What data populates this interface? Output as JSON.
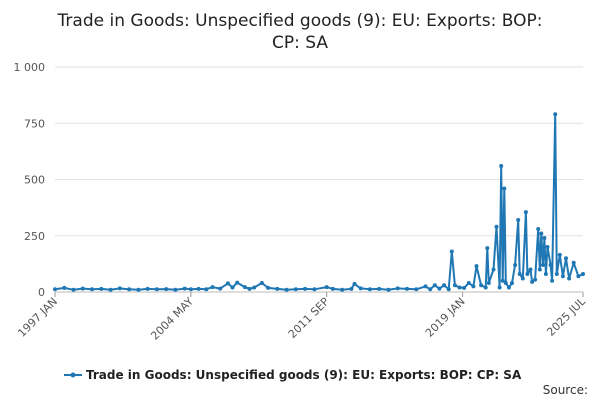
{
  "chart_data": {
    "type": "line",
    "title": "Trade in Goods: Unspecified goods (9): EU: Exports: BOP: CP: SA",
    "title_lines": [
      "Trade in Goods: Unspecified goods (9): EU: Exports: BOP:",
      "CP: SA"
    ],
    "xlabel": "",
    "ylabel": "",
    "x_range": [
      "1997 JAN",
      "2025 JUL"
    ],
    "ylim": [
      0,
      1000
    ],
    "y_ticks": [
      {
        "value": 0,
        "label": "0"
      },
      {
        "value": 250,
        "label": "250"
      },
      {
        "value": 500,
        "label": "500"
      },
      {
        "value": 750,
        "label": "750"
      },
      {
        "value": 1000,
        "label": "1 000"
      }
    ],
    "x_ticks": [
      "1997 JAN",
      "2004 MAY",
      "2011 SEP",
      "2019 JAN",
      "2025 JUL"
    ],
    "grid": "horizontal",
    "legend_position": "bottom",
    "source_label": "Source:",
    "series": [
      {
        "name": "Trade in Goods: Unspecified goods (9): EU: Exports: BOP: CP: SA",
        "color": "#1f77b4",
        "points": [
          [
            "1997 JAN",
            12
          ],
          [
            "1997 JUL",
            18
          ],
          [
            "1998 JAN",
            10
          ],
          [
            "1998 JUL",
            15
          ],
          [
            "1999 JAN",
            12
          ],
          [
            "1999 JUL",
            14
          ],
          [
            "2000 JAN",
            10
          ],
          [
            "2000 JUL",
            16
          ],
          [
            "2001 JAN",
            12
          ],
          [
            "2001 JUL",
            10
          ],
          [
            "2002 JAN",
            14
          ],
          [
            "2002 JUL",
            12
          ],
          [
            "2003 JAN",
            13
          ],
          [
            "2003 JUL",
            10
          ],
          [
            "2004 JAN",
            15
          ],
          [
            "2004 MAY",
            12
          ],
          [
            "2004 OCT",
            14
          ],
          [
            "2005 MAR",
            12
          ],
          [
            "2005 JUL",
            22
          ],
          [
            "2005 DEC",
            15
          ],
          [
            "2006 MAY",
            38
          ],
          [
            "2006 AUG",
            20
          ],
          [
            "2006 NOV",
            42
          ],
          [
            "2007 APR",
            22
          ],
          [
            "2007 JUL",
            14
          ],
          [
            "2007 OCT",
            20
          ],
          [
            "2008 MAR",
            40
          ],
          [
            "2008 JUL",
            18
          ],
          [
            "2009 JAN",
            14
          ],
          [
            "2009 JUL",
            10
          ],
          [
            "2010 JAN",
            12
          ],
          [
            "2010 JUL",
            14
          ],
          [
            "2011 JAN",
            12
          ],
          [
            "2011 SEP",
            22
          ],
          [
            "2012 JAN",
            14
          ],
          [
            "2012 JUL",
            10
          ],
          [
            "2013 JAN",
            14
          ],
          [
            "2013 MAR",
            36
          ],
          [
            "2013 JUL",
            16
          ],
          [
            "2014 JAN",
            12
          ],
          [
            "2014 JUL",
            14
          ],
          [
            "2015 JAN",
            10
          ],
          [
            "2015 JUL",
            16
          ],
          [
            "2016 JAN",
            14
          ],
          [
            "2016 JUL",
            12
          ],
          [
            "2017 JAN",
            25
          ],
          [
            "2017 APR",
            12
          ],
          [
            "2017 JUL",
            30
          ],
          [
            "2017 OCT",
            15
          ],
          [
            "2018 JAN",
            30
          ],
          [
            "2018 APR",
            12
          ],
          [
            "2018 JUN",
            180
          ],
          [
            "2018 AUG",
            30
          ],
          [
            "2018 NOV",
            20
          ],
          [
            "2019 FEB",
            18
          ],
          [
            "2019 MAY",
            40
          ],
          [
            "2019 AUG",
            25
          ],
          [
            "2019 OCT",
            115
          ],
          [
            "2020 JAN",
            30
          ],
          [
            "2020 APR",
            20
          ],
          [
            "2020 MAY",
            195
          ],
          [
            "2020 JUN",
            40
          ],
          [
            "2020 SEP",
            100
          ],
          [
            "2020 NOV",
            290
          ],
          [
            "2021 JAN",
            20
          ],
          [
            "2021 FEB",
            560
          ],
          [
            "2021 MAR",
            50
          ],
          [
            "2021 APR",
            460
          ],
          [
            "2021 MAY",
            40
          ],
          [
            "2021 JUL",
            20
          ],
          [
            "2021 SEP",
            40
          ],
          [
            "2021 NOV",
            120
          ],
          [
            "2022 JAN",
            320
          ],
          [
            "2022 FEB",
            80
          ],
          [
            "2022 APR",
            60
          ],
          [
            "2022 JUN",
            355
          ],
          [
            "2022 JUL",
            80
          ],
          [
            "2022 SEP",
            100
          ],
          [
            "2022 OCT",
            45
          ],
          [
            "2022 DEC",
            55
          ],
          [
            "2023 FEB",
            280
          ],
          [
            "2023 MAR",
            100
          ],
          [
            "2023 APR",
            260
          ],
          [
            "2023 MAY",
            120
          ],
          [
            "2023 JUN",
            240
          ],
          [
            "2023 JUL",
            80
          ],
          [
            "2023 AUG",
            200
          ],
          [
            "2023 OCT",
            120
          ],
          [
            "2023 NOV",
            50
          ],
          [
            "2024 JAN",
            790
          ],
          [
            "2024 FEB",
            80
          ],
          [
            "2024 APR",
            165
          ],
          [
            "2024 JUN",
            70
          ],
          [
            "2024 AUG",
            150
          ],
          [
            "2024 OCT",
            60
          ],
          [
            "2025 JAN",
            130
          ],
          [
            "2025 APR",
            70
          ],
          [
            "2025 JUL",
            80
          ]
        ]
      }
    ]
  }
}
